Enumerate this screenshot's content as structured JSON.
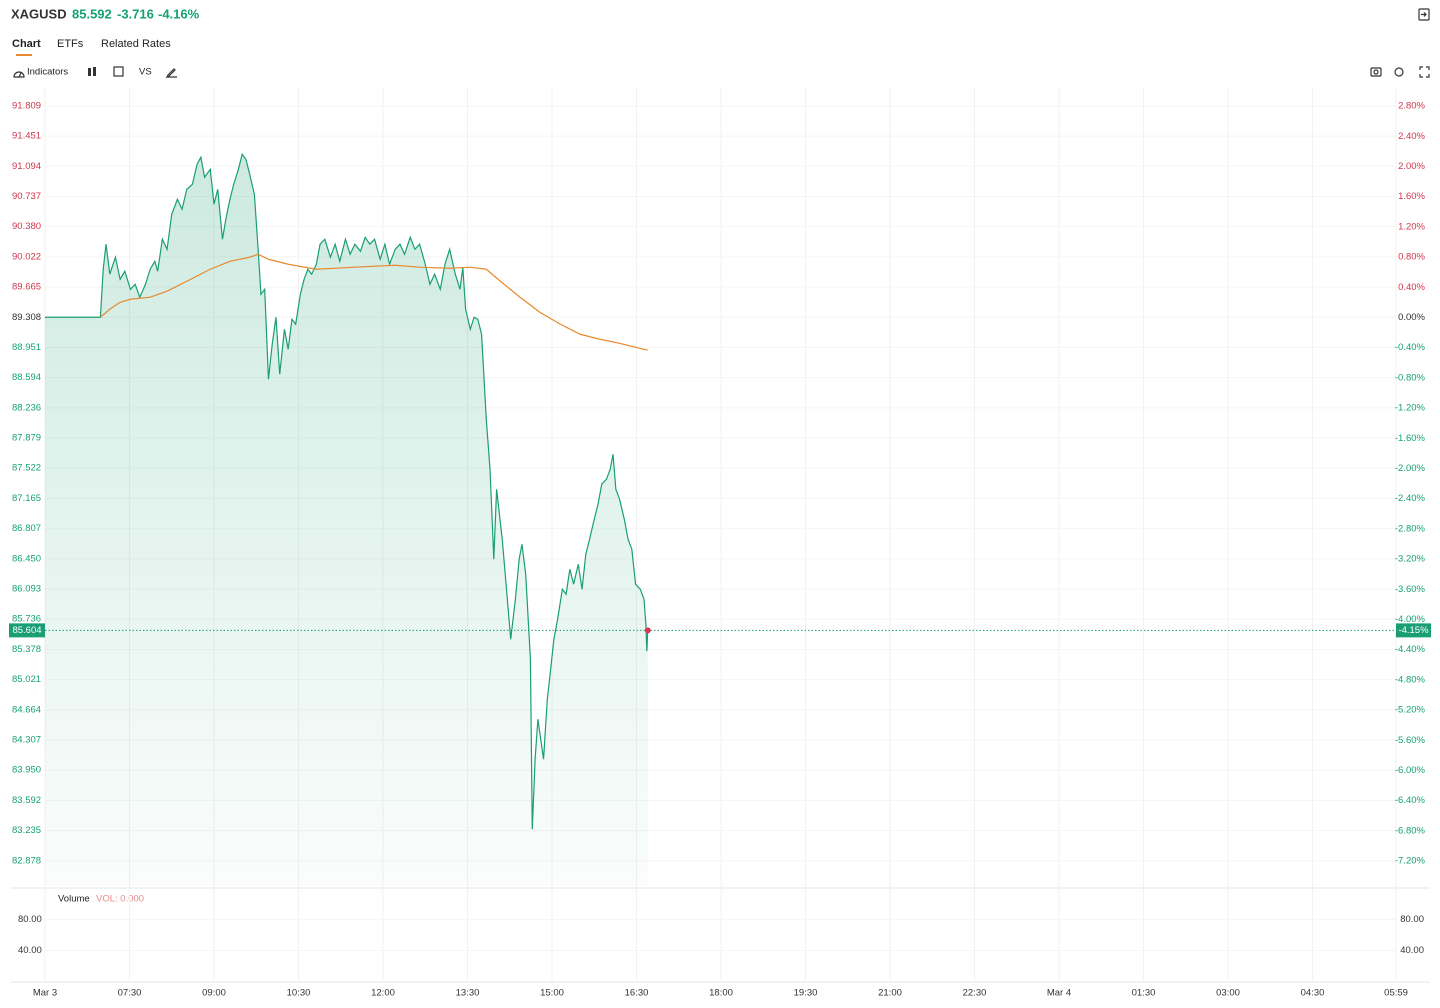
{
  "header": {
    "symbol": "XAGUSD",
    "price": "85.592",
    "change": "-3.716",
    "change_pct": "-4.16%"
  },
  "tabs": [
    "Chart",
    "ETFs",
    "Related Rates"
  ],
  "toolbar": {
    "indicators": "Indicators",
    "compare": "VS"
  },
  "chart_data": {
    "type": "area",
    "xlim": [
      "06:00",
      "05:59"
    ],
    "xticks": [
      {
        "value": "06:00",
        "label": "Mar 3"
      },
      "07:30",
      "09:00",
      "10:30",
      "12:00",
      "13:30",
      "15:00",
      "16:30",
      "18:00",
      "19:30",
      "21:00",
      "22:30",
      {
        "value": "00:00",
        "label": "Mar 4"
      },
      "01:30",
      "03:00",
      "04:30",
      "05:59"
    ],
    "ylim": [
      82.58,
      92.02
    ],
    "yticks": [
      91.809,
      91.451,
      91.094,
      90.737,
      {
        "value": 90.38,
        "label": "90.380"
      },
      90.022,
      89.665,
      89.308,
      88.951,
      88.594,
      88.236,
      87.879,
      87.522,
      87.165,
      86.807,
      {
        "value": 86.45,
        "label": "86.450"
      },
      86.093,
      85.736,
      85.378,
      85.021,
      84.664,
      84.307,
      {
        "value": 83.95,
        "label": "83.950"
      },
      83.592,
      83.235,
      82.878
    ],
    "y2lim": [
      -7.53,
      3.04
    ],
    "y2ticks": [
      {
        "value": 2.8,
        "label": "2.80%"
      },
      {
        "value": 2.4,
        "label": "2.40%"
      },
      {
        "value": 2.0,
        "label": "2.00%"
      },
      {
        "value": 1.6,
        "label": "1.60%"
      },
      {
        "value": 1.2,
        "label": "1.20%"
      },
      {
        "value": 0.8,
        "label": "0.80%"
      },
      {
        "value": 0.4,
        "label": "0.40%"
      },
      {
        "value": 0,
        "label": "0.00%"
      },
      {
        "value": -0.4,
        "label": "-0.40%"
      },
      {
        "value": -0.8,
        "label": "-0.80%"
      },
      {
        "value": -1.2,
        "label": "-1.20%"
      },
      {
        "value": -1.6,
        "label": "-1.60%"
      },
      {
        "value": -2.0,
        "label": "-2.00%"
      },
      {
        "value": -2.4,
        "label": "-2.40%"
      },
      {
        "value": -2.8,
        "label": "-2.80%"
      },
      {
        "value": -3.2,
        "label": "-3.20%"
      },
      {
        "value": -3.6,
        "label": "-3.60%"
      },
      {
        "value": -4.0,
        "label": "-4.00%"
      },
      {
        "value": -4.4,
        "label": "-4.40%"
      },
      {
        "value": -4.8,
        "label": "-4.80%"
      },
      {
        "value": -5.2,
        "label": "-5.20%"
      },
      {
        "value": -5.6,
        "label": "-5.60%"
      },
      {
        "value": -6.0,
        "label": "-6.00%"
      },
      {
        "value": -6.4,
        "label": "-6.40%"
      },
      {
        "value": -6.8,
        "label": "-6.80%"
      },
      {
        "value": -7.2,
        "label": "-7.20%"
      }
    ],
    "grid": true,
    "last_price": 85.604,
    "last_change": {
      "value": -4.15,
      "label": "-4.15%"
    },
    "series": [
      {
        "type": "area",
        "color": "#1a9e74",
        "x": [
          "06:00",
          "06:59",
          "07:02",
          "07:05",
          "07:09",
          "07:15",
          "07:20",
          "07:25",
          "07:31",
          "07:36",
          "07:41",
          "07:47",
          "07:52",
          "07:57",
          "08:00",
          "08:05",
          "08:10",
          "08:15",
          "08:21",
          "08:26",
          "08:31",
          "08:37",
          "08:42",
          "08:46",
          "08:50",
          "08:56",
          "09:00",
          "09:04",
          "09:09",
          "09:13",
          "09:17",
          "09:21",
          "09:26",
          "09:30",
          "09:34",
          "09:38",
          "09:43",
          "09:47",
          "09:50",
          "09:54",
          "09:58",
          "10:02",
          "10:06",
          "10:10",
          "10:15",
          "10:19",
          "10:23",
          "10:27",
          "10:32",
          "10:36",
          "10:40",
          "10:44",
          "10:49",
          "10:53",
          "10:58",
          "11:04",
          "11:09",
          "11:14",
          "11:20",
          "11:25",
          "11:30",
          "11:36",
          "11:41",
          "11:46",
          "11:51",
          "11:57",
          "12:02",
          "12:07",
          "12:13",
          "12:18",
          "12:23",
          "12:29",
          "12:34",
          "12:39",
          "12:45",
          "12:50",
          "12:55",
          "13:01",
          "13:06",
          "13:11",
          "13:17",
          "13:22",
          "13:25",
          "13:28",
          "13:33",
          "13:37",
          "13:41",
          "13:45",
          "13:50",
          "13:54",
          "13:58",
          "14:01",
          "14:07",
          "14:12",
          "14:16",
          "14:21",
          "14:25",
          "14:28",
          "14:32",
          "14:37",
          "14:39",
          "14:42",
          "14:45",
          "14:48",
          "14:51",
          "14:55",
          "14:58",
          "15:02",
          "15:06",
          "15:11",
          "15:15",
          "15:19",
          "15:23",
          "15:28",
          "15:32",
          "15:36",
          "15:40",
          "15:45",
          "15:49",
          "15:53",
          "15:58",
          "16:02",
          "16:05",
          "16:08",
          "16:12",
          "16:17",
          "16:21",
          "16:25",
          "16:29",
          "16:34",
          "16:38",
          "16:40",
          "16:41",
          "16:42"
        ],
        "values": [
          89.308,
          89.308,
          89.876,
          90.172,
          89.817,
          90.018,
          89.758,
          89.852,
          89.639,
          89.698,
          89.545,
          89.698,
          89.876,
          89.97,
          89.852,
          90.231,
          90.112,
          90.526,
          90.704,
          90.586,
          90.822,
          90.881,
          91.118,
          91.201,
          90.964,
          91.059,
          90.645,
          90.822,
          90.231,
          90.491,
          90.704,
          90.881,
          91.059,
          91.236,
          91.177,
          91.0,
          90.763,
          90.112,
          89.58,
          89.639,
          88.575,
          88.989,
          89.308,
          88.634,
          89.166,
          88.93,
          89.284,
          89.225,
          89.58,
          89.758,
          89.876,
          89.817,
          89.935,
          90.172,
          90.231,
          90.018,
          90.172,
          89.97,
          90.231,
          90.053,
          90.172,
          90.089,
          90.254,
          90.172,
          90.231,
          89.994,
          90.172,
          89.935,
          90.112,
          90.172,
          90.053,
          90.254,
          90.112,
          90.172,
          89.935,
          89.698,
          89.817,
          89.639,
          89.935,
          90.112,
          89.817,
          89.639,
          89.9,
          89.403,
          89.166,
          89.308,
          89.284,
          89.107,
          88.101,
          87.51,
          86.445,
          87.273,
          86.682,
          86.031,
          85.499,
          85.972,
          86.445,
          86.623,
          86.268,
          85.263,
          83.252,
          84.08,
          84.553,
          84.316,
          84.08,
          84.789,
          85.085,
          85.499,
          85.736,
          86.091,
          86.031,
          86.327,
          86.15,
          86.386,
          86.091,
          86.505,
          86.682,
          86.919,
          87.096,
          87.333,
          87.392,
          87.51,
          87.687,
          87.273,
          87.155,
          86.919,
          86.682,
          86.564,
          86.15,
          86.091,
          85.972,
          85.677,
          85.357,
          85.604
        ]
      },
      {
        "type": "line",
        "color": "#e8892f",
        "x": [
          "06:59",
          "07:09",
          "07:20",
          "07:31",
          "07:52",
          "08:10",
          "08:31",
          "08:56",
          "09:17",
          "09:38",
          "09:47",
          "09:58",
          "10:19",
          "10:49",
          "11:30",
          "12:13",
          "12:39",
          "13:11",
          "13:33",
          "13:50",
          "14:05",
          "14:26",
          "14:47",
          "15:09",
          "15:30",
          "15:51",
          "16:12",
          "16:42"
        ],
        "values": [
          89.308,
          89.403,
          89.485,
          89.521,
          89.545,
          89.616,
          89.734,
          89.876,
          89.97,
          90.018,
          90.053,
          89.994,
          89.935,
          89.876,
          89.9,
          89.923,
          89.9,
          89.888,
          89.9,
          89.876,
          89.734,
          89.545,
          89.367,
          89.225,
          89.107,
          89.048,
          89.0,
          88.918
        ]
      }
    ]
  },
  "volume": {
    "title": "Volume",
    "label": "VOL: 0.000",
    "ylim": [
      0,
      120
    ],
    "yticks": [
      {
        "value": 80,
        "label": "80.00"
      },
      {
        "value": 40,
        "label": "40.00"
      }
    ]
  }
}
